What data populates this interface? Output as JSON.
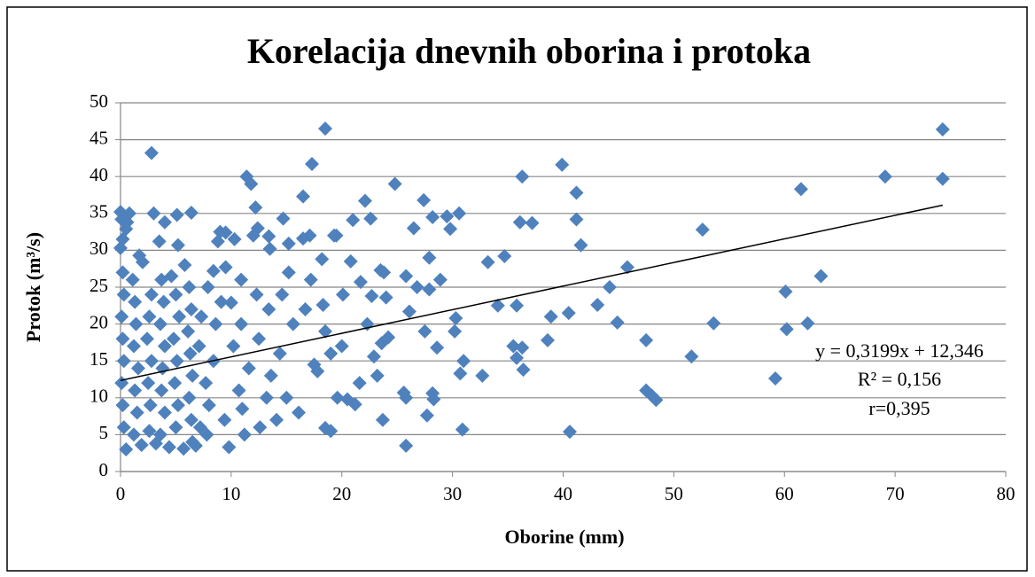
{
  "chart_data": {
    "type": "scatter",
    "title": "Korelacija dnevnih oborina i protoka",
    "xlabel": "Oborine (mm)",
    "ylabel": "Protok (m³/s)",
    "color": "#4f81bd",
    "xlim": [
      0,
      80
    ],
    "xticks": [
      0,
      10,
      20,
      30,
      40,
      50,
      60,
      70,
      80
    ],
    "ylim": [
      0,
      50
    ],
    "yticks": [
      0,
      5,
      10,
      15,
      20,
      25,
      30,
      35,
      40,
      45,
      50
    ],
    "grid": true,
    "annotations": [
      "y = 0,3199x + 12,346",
      "R² = 0,156",
      "r=0,395"
    ],
    "trendline": {
      "x": [
        0,
        74.3
      ],
      "values": [
        12.346,
        36.12
      ]
    },
    "x": [
      2.8,
      18.5,
      17.3,
      11.4,
      11.8,
      16.5,
      12.2,
      12.4,
      14.7,
      22.1,
      24.8,
      27.4,
      21,
      22.6,
      28.2,
      29.5,
      30.6,
      29.8,
      26.5,
      19.5,
      17.1,
      16.5,
      13.5,
      20.8,
      18.2,
      23.8,
      25.8,
      27.9,
      28.9,
      33.2,
      34.7,
      36.3,
      39.9,
      41.2,
      41.2,
      37.2,
      36.1,
      41.6,
      45.8,
      44.2,
      43.1,
      40.5,
      38.9,
      35.8,
      34.1,
      44.9,
      36.3,
      35.5,
      38.6,
      35.8,
      36.4,
      32.7,
      31,
      30.7,
      30.2,
      30.3,
      28.6,
      27.5,
      27.9,
      26.8,
      26.1,
      25.6,
      25.8,
      28.2,
      28.3,
      27.7,
      30.9,
      25.8,
      23.7,
      19,
      18.5,
      40.6,
      47.5,
      47.5,
      48,
      48.4,
      51.6,
      52.6,
      53.6,
      60.1,
      60.2,
      61.5,
      62.1,
      63.3,
      69.1,
      74.3,
      74.3,
      0,
      0.1,
      0.8,
      0.5,
      0.2,
      0,
      1.7,
      3,
      4,
      5.1,
      6.4,
      3.5,
      5.2,
      9.5,
      9,
      10.3,
      8.8,
      12,
      13.4,
      15.2,
      19.3,
      20.1,
      21.7,
      22.7,
      23.5,
      24,
      22.3,
      23.6,
      23.2,
      22.9,
      24.2,
      21.6,
      20.5,
      21.2,
      19.6,
      20,
      18.5,
      15.6,
      16.7,
      17.2,
      14.6,
      15.2,
      13.4,
      12.5,
      14.4,
      13.6,
      15,
      16.1,
      14.1,
      12.6,
      11.2,
      11,
      9.8,
      9.4,
      10.7,
      11.6,
      10.2,
      10.9,
      10,
      9.5,
      8.4,
      7.9,
      9.1,
      8.6,
      8.4,
      7.7,
      8,
      7.8,
      6.8,
      5.7,
      4.4,
      3.2,
      1.9,
      0.5,
      0.3,
      0.2,
      0.1,
      0.3,
      0.2,
      0.1,
      0.3,
      0.2,
      1.2,
      1.5,
      1.3,
      1.6,
      1.2,
      1.4,
      1.3,
      1.1,
      2.6,
      2.7,
      2.5,
      2.8,
      2.4,
      2.6,
      2.8,
      3.7,
      3.9,
      3.6,
      4,
      3.8,
      3.7,
      4,
      3.6,
      5,
      5.2,
      4.9,
      5.1,
      4.8,
      5.3,
      5,
      4.6,
      6.2,
      6.4,
      6.1,
      6.3,
      6.5,
      6.2,
      6.4,
      6.5,
      7.2,
      7.1,
      7.3,
      5.8,
      2,
      0.6,
      10.9,
      12.3,
      13.2,
      17.8,
      19,
      18.3,
      17.5
    ],
    "values": [
      43.2,
      46.5,
      41.7,
      40,
      39,
      37.3,
      35.8,
      33,
      34.3,
      36.7,
      39,
      36.8,
      34.1,
      34.3,
      34.5,
      34.6,
      35,
      32.9,
      33,
      32,
      32,
      31.6,
      30.2,
      28.5,
      28.8,
      27,
      26.5,
      29,
      26,
      28.4,
      29.2,
      40,
      41.6,
      37.8,
      34.2,
      33.7,
      33.8,
      30.7,
      27.7,
      25,
      22.6,
      21.5,
      21,
      22.5,
      22.5,
      20.2,
      16.8,
      17,
      17.8,
      15.4,
      13.8,
      13,
      15,
      13.3,
      19,
      20.8,
      16.8,
      19,
      24.7,
      25,
      21.7,
      10.7,
      10,
      10.6,
      9.8,
      7.6,
      5.7,
      3.5,
      7,
      5.5,
      5.9,
      5.4,
      17.8,
      11,
      10.3,
      9.7,
      15.6,
      32.8,
      20.1,
      24.4,
      19.3,
      38.3,
      20.1,
      26.5,
      40,
      46.4,
      39.7,
      35.2,
      34.2,
      35,
      32.9,
      31.5,
      30.3,
      29.3,
      35,
      33.8,
      34.8,
      35.1,
      31.2,
      30.7,
      32.4,
      32.5,
      31.5,
      31.2,
      32,
      31.9,
      30.9,
      32,
      24,
      25.7,
      23.8,
      27.3,
      23.6,
      20,
      17.4,
      13,
      15.6,
      18.2,
      12,
      9.8,
      9.1,
      10,
      17,
      19,
      20,
      22,
      26,
      24,
      27,
      22,
      18,
      16,
      13,
      10,
      8,
      7,
      6,
      5,
      8.5,
      3.3,
      7,
      11,
      14,
      17,
      20,
      22.9,
      27.7,
      27.2,
      25,
      23,
      20,
      15,
      12,
      9,
      5,
      3.5,
      3.1,
      3.3,
      3.8,
      3.6,
      3,
      6,
      9,
      12,
      15,
      18,
      21,
      24,
      27,
      5,
      8,
      11,
      14,
      17,
      20,
      23,
      26,
      5.5,
      9,
      12,
      15,
      18,
      21,
      24,
      26,
      23,
      20,
      17,
      14,
      11,
      8,
      5,
      6,
      9,
      12,
      15,
      18,
      21,
      24,
      26.5,
      25,
      22,
      19,
      16,
      13,
      10,
      7,
      4,
      6,
      17,
      21,
      28,
      28.4,
      33.8,
      26,
      24,
      10,
      13.6,
      16,
      22.6,
      14.5
    ]
  }
}
